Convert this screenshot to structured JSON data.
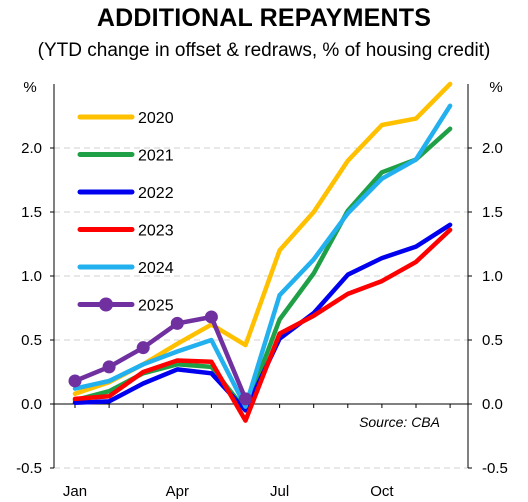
{
  "header": {
    "title": "ADDITIONAL REPAYMENTS",
    "subtitle": "(YTD change in offset & redraws, % of housing credit)"
  },
  "source_note": "Source: CBA",
  "colors": {
    "2020": "#FFC000",
    "2021": "#1FA046",
    "2022": "#0000EE",
    "2023": "#FF0000",
    "2024": "#22B0EE",
    "2025": "#7030A0",
    "grid": "#d0d0d0"
  },
  "chart_data": {
    "type": "line",
    "title": "ADDITIONAL REPAYMENTS",
    "subtitle": "(YTD change in offset & redraws, % of housing credit)",
    "y_unit_left": "%",
    "y_unit_right": "%",
    "xlabel": "",
    "ylabel": "",
    "x_tick_labels": [
      "Jan",
      "Apr",
      "Jul",
      "Oct"
    ],
    "x_tick_index": [
      0,
      3,
      6,
      9
    ],
    "ylim": [
      -0.5,
      2.5
    ],
    "y_ticks": [
      -0.5,
      0.0,
      0.5,
      1.0,
      1.5,
      2.0
    ],
    "y_tick_labels": [
      "-0.5",
      "0.0",
      "0.5",
      "1.0",
      "1.5",
      "2.0"
    ],
    "grid_y": true,
    "legend_position": "top-left",
    "series": [
      {
        "name": "2020",
        "color_key": "2020",
        "values": [
          0.08,
          0.17,
          0.31,
          0.47,
          0.62,
          0.46,
          1.2,
          1.5,
          1.9,
          2.18,
          2.23,
          2.5
        ]
      },
      {
        "name": "2021",
        "color_key": "2021",
        "values": [
          0.03,
          0.1,
          0.24,
          0.31,
          0.29,
          -0.05,
          0.66,
          1.02,
          1.51,
          1.81,
          1.91,
          2.15
        ]
      },
      {
        "name": "2022",
        "color_key": "2022",
        "values": [
          0.01,
          0.02,
          0.16,
          0.27,
          0.24,
          -0.05,
          0.51,
          0.71,
          1.01,
          1.14,
          1.23,
          1.4
        ]
      },
      {
        "name": "2023",
        "color_key": "2023",
        "values": [
          0.04,
          0.06,
          0.25,
          0.34,
          0.33,
          -0.13,
          0.55,
          0.69,
          0.86,
          0.96,
          1.11,
          1.36
        ]
      },
      {
        "name": "2024",
        "color_key": "2024",
        "values": [
          0.12,
          0.18,
          0.31,
          0.41,
          0.5,
          -0.02,
          0.85,
          1.13,
          1.49,
          1.76,
          1.91,
          2.33
        ]
      },
      {
        "name": "2025",
        "color_key": "2025",
        "values": [
          0.18,
          0.29,
          0.44,
          0.63,
          0.68,
          0.04
        ],
        "markers": true
      }
    ]
  }
}
